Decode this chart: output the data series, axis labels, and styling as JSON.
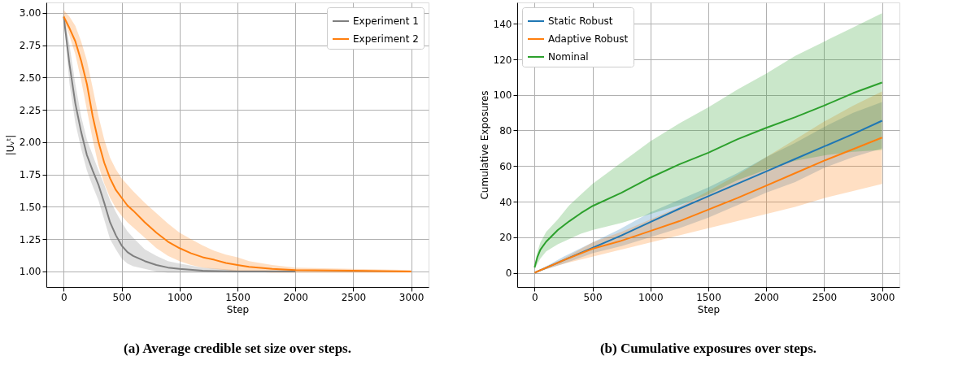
{
  "chart_data": [
    {
      "type": "line",
      "xlabel": "Step",
      "ylabel": "|Uᵥᵗ|",
      "annotations": [
        "(a) Average credible set size over steps."
      ],
      "xlim": [
        -150,
        3150
      ],
      "ylim": [
        0.88,
        3.08
      ],
      "xticks": [
        0,
        500,
        1000,
        1500,
        2000,
        2500,
        3000
      ],
      "yticks": [
        {
          "value": 1,
          "label": "1.00"
        },
        {
          "value": 1.25,
          "label": "1.25"
        },
        {
          "value": 1.5,
          "label": "1.50"
        },
        {
          "value": 1.75,
          "label": "1.75"
        },
        {
          "value": 2,
          "label": "2.00"
        },
        {
          "value": 2.25,
          "label": "2.25"
        },
        {
          "value": 2.5,
          "label": "2.50"
        },
        {
          "value": 2.75,
          "label": "2.75"
        },
        {
          "value": 3,
          "label": "3.00"
        }
      ],
      "grid": true,
      "legend": "top right",
      "series": [
        {
          "name": "Experiment 1",
          "color": "#7f7f7f",
          "x": [
            0,
            50,
            100,
            150,
            200,
            250,
            300,
            350,
            400,
            450,
            500,
            550,
            600,
            700,
            800,
            900,
            1000,
            1200,
            1500,
            2000
          ],
          "values": [
            2.97,
            2.6,
            2.3,
            2.08,
            1.9,
            1.78,
            1.67,
            1.53,
            1.38,
            1.28,
            1.2,
            1.15,
            1.12,
            1.08,
            1.05,
            1.03,
            1.02,
            1.005,
            1.0,
            1.0
          ],
          "lower": [
            2.95,
            2.45,
            2.15,
            1.95,
            1.78,
            1.66,
            1.55,
            1.4,
            1.25,
            1.17,
            1.1,
            1.06,
            1.04,
            1.02,
            1.0,
            0.99,
            0.99,
            0.99,
            0.99,
            0.99
          ],
          "upper": [
            3.0,
            2.75,
            2.45,
            2.2,
            2.02,
            1.9,
            1.78,
            1.67,
            1.55,
            1.46,
            1.38,
            1.31,
            1.26,
            1.17,
            1.12,
            1.08,
            1.06,
            1.03,
            1.01,
            1.01
          ]
        },
        {
          "name": "Experiment 2",
          "color": "#ff7f0e",
          "x": [
            0,
            50,
            100,
            150,
            200,
            250,
            300,
            350,
            400,
            450,
            500,
            550,
            600,
            700,
            800,
            900,
            1000,
            1100,
            1200,
            1300,
            1400,
            1500,
            1600,
            1800,
            2000,
            2500,
            3000
          ],
          "values": [
            2.97,
            2.88,
            2.78,
            2.63,
            2.45,
            2.2,
            2.0,
            1.84,
            1.72,
            1.63,
            1.57,
            1.51,
            1.47,
            1.38,
            1.3,
            1.23,
            1.18,
            1.14,
            1.11,
            1.09,
            1.065,
            1.05,
            1.035,
            1.02,
            1.01,
            1.005,
            1.0
          ],
          "lower": [
            2.95,
            2.82,
            2.68,
            2.48,
            2.25,
            2.02,
            1.82,
            1.68,
            1.57,
            1.49,
            1.43,
            1.38,
            1.34,
            1.26,
            1.18,
            1.12,
            1.08,
            1.05,
            1.03,
            1.02,
            1.01,
            1.0,
            1.0,
            0.99,
            0.99,
            0.99,
            0.99
          ],
          "upper": [
            3.02,
            2.97,
            2.9,
            2.78,
            2.63,
            2.42,
            2.2,
            2.02,
            1.88,
            1.79,
            1.72,
            1.67,
            1.62,
            1.53,
            1.45,
            1.37,
            1.3,
            1.25,
            1.2,
            1.16,
            1.13,
            1.11,
            1.08,
            1.05,
            1.03,
            1.02,
            1.01
          ]
        }
      ]
    },
    {
      "type": "line",
      "xlabel": "Step",
      "ylabel": "Cumulative Exposures",
      "annotations": [
        "(b) Cumulative exposures over steps."
      ],
      "xlim": [
        -150,
        3150
      ],
      "ylim": [
        -8,
        152
      ],
      "xticks": [
        0,
        500,
        1000,
        1500,
        2000,
        2500,
        3000
      ],
      "yticks": [
        0,
        20,
        40,
        60,
        80,
        100,
        120,
        140
      ],
      "grid": true,
      "legend": "top left",
      "series": [
        {
          "name": "Static Robust",
          "color": "#1f77b4",
          "x": [
            0,
            250,
            500,
            750,
            1000,
            1250,
            1500,
            1750,
            2000,
            2250,
            2500,
            2750,
            3000
          ],
          "values": [
            0,
            7,
            14,
            21,
            28.5,
            36,
            43,
            50,
            57,
            64,
            71,
            78,
            85.5
          ],
          "lower": [
            0,
            5,
            11,
            15,
            20,
            25,
            31,
            38,
            45,
            51,
            59,
            65,
            70
          ],
          "upper": [
            0,
            9,
            17,
            25,
            34,
            41,
            48,
            56,
            65,
            73,
            82,
            90,
            96
          ]
        },
        {
          "name": "Adaptive Robust",
          "color": "#ff7f0e",
          "x": [
            0,
            250,
            500,
            750,
            1000,
            1250,
            1500,
            1750,
            2000,
            2250,
            2500,
            2750,
            3000
          ],
          "values": [
            0,
            7,
            13.5,
            18,
            23.5,
            29,
            35.5,
            42,
            49,
            56,
            63,
            69.5,
            76
          ],
          "lower": [
            0,
            5,
            9,
            13,
            17,
            21,
            25,
            29,
            33,
            37,
            42,
            46,
            50
          ],
          "upper": [
            0,
            8,
            17,
            23,
            30,
            37,
            46,
            55,
            65,
            75,
            85,
            94,
            102
          ]
        },
        {
          "name": "Nominal",
          "color": "#2ca02c",
          "x": [
            0,
            25,
            50,
            100,
            200,
            300,
            400,
            500,
            750,
            1000,
            1250,
            1500,
            1750,
            2000,
            2250,
            2500,
            2750,
            3000
          ],
          "values": [
            3,
            9,
            13,
            17.5,
            24,
            29,
            33.5,
            37.5,
            45,
            53.5,
            61,
            67.5,
            75,
            81.5,
            87.5,
            94,
            101,
            107
          ],
          "lower": [
            2,
            5,
            8,
            12,
            16,
            19,
            22,
            24,
            28,
            33,
            38,
            44,
            52,
            58,
            63,
            66,
            68,
            69
          ],
          "upper": [
            4,
            12,
            17,
            23,
            30,
            38,
            44,
            50,
            62,
            74,
            84,
            93,
            103,
            112,
            122,
            130,
            138,
            146
          ]
        }
      ]
    }
  ]
}
